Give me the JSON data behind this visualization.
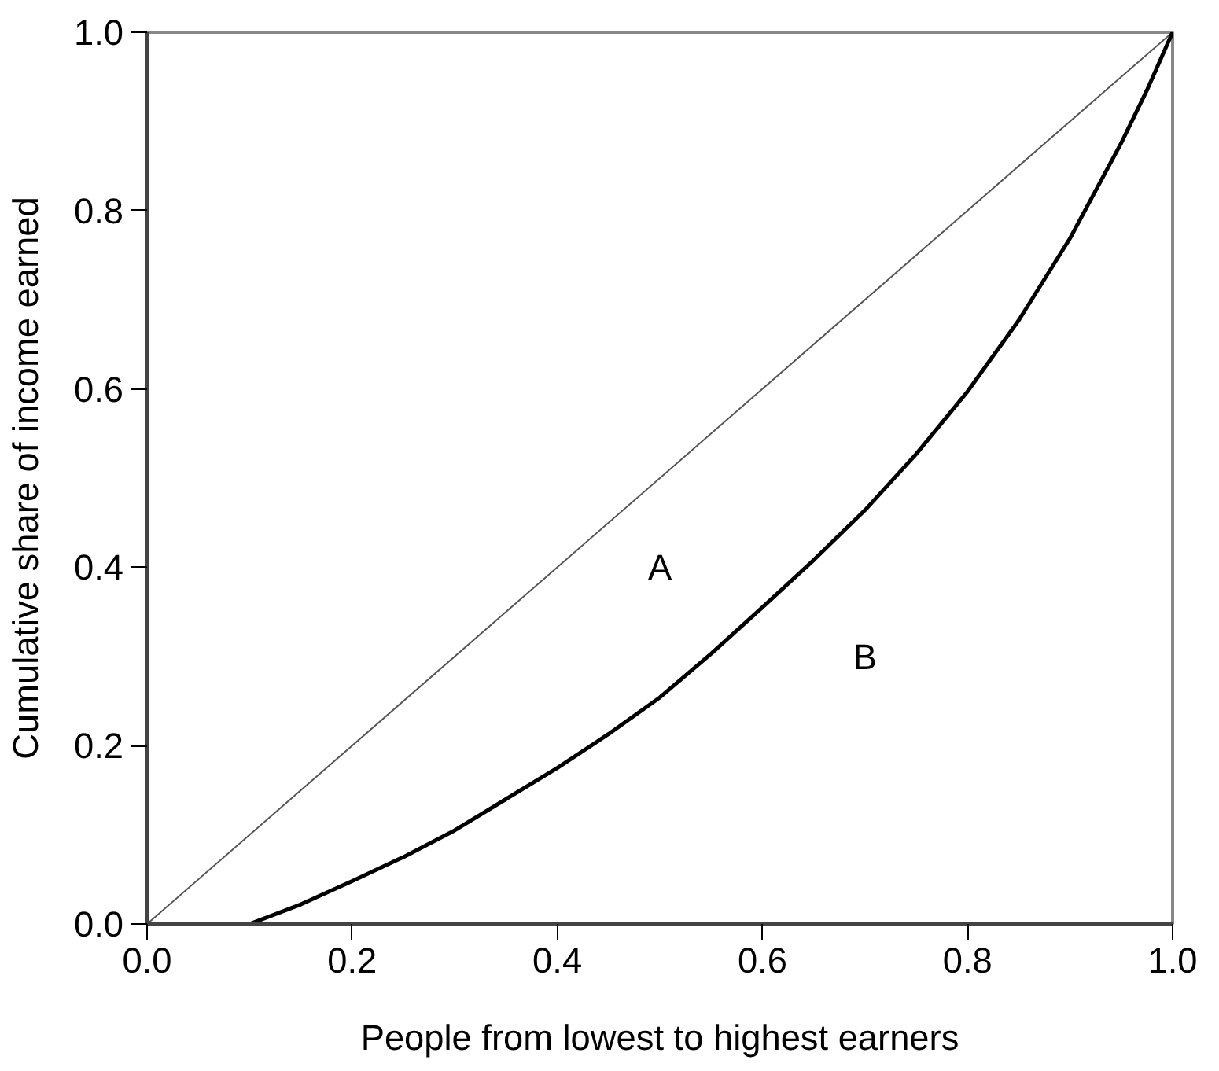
{
  "chart_data": {
    "type": "line",
    "xlabel": "People from lowest to highest earners",
    "ylabel": "Cumulative share of income earned",
    "xlim": [
      0,
      1
    ],
    "ylim": [
      0,
      1
    ],
    "xticks": [
      {
        "value": 0,
        "label": "0.0"
      },
      {
        "value": 0.2,
        "label": "0.2"
      },
      {
        "value": 0.4,
        "label": "0.4"
      },
      {
        "value": 0.6,
        "label": "0.6"
      },
      {
        "value": 0.8,
        "label": "0.8"
      },
      {
        "value": 1,
        "label": "1.0"
      }
    ],
    "yticks": [
      {
        "value": 0,
        "label": "0.0"
      },
      {
        "value": 0.2,
        "label": "0.2"
      },
      {
        "value": 0.4,
        "label": "0.4"
      },
      {
        "value": 0.6,
        "label": "0.6"
      },
      {
        "value": 0.8,
        "label": "0.8"
      },
      {
        "value": 1,
        "label": "1.0"
      }
    ],
    "grid": false,
    "marker": "none",
    "line_style": "solid",
    "series": [
      {
        "color": "#555555",
        "x": [
          0,
          1
        ],
        "values": [
          0,
          1
        ]
      },
      {
        "color": "#000000",
        "x": [
          0,
          0.1,
          0.15,
          0.2,
          0.25,
          0.3,
          0.35,
          0.4,
          0.45,
          0.5,
          0.55,
          0.6,
          0.65,
          0.7,
          0.75,
          0.8,
          0.85,
          0.9,
          0.95,
          0.975,
          1.0
        ],
        "values": [
          0,
          0,
          0.022,
          0.048,
          0.075,
          0.105,
          0.14,
          0.175,
          0.213,
          0.254,
          0.303,
          0.355,
          0.408,
          0.464,
          0.527,
          0.597,
          0.677,
          0.769,
          0.876,
          0.935,
          1.0
        ]
      }
    ],
    "annotations": [
      "A",
      "B"
    ]
  }
}
